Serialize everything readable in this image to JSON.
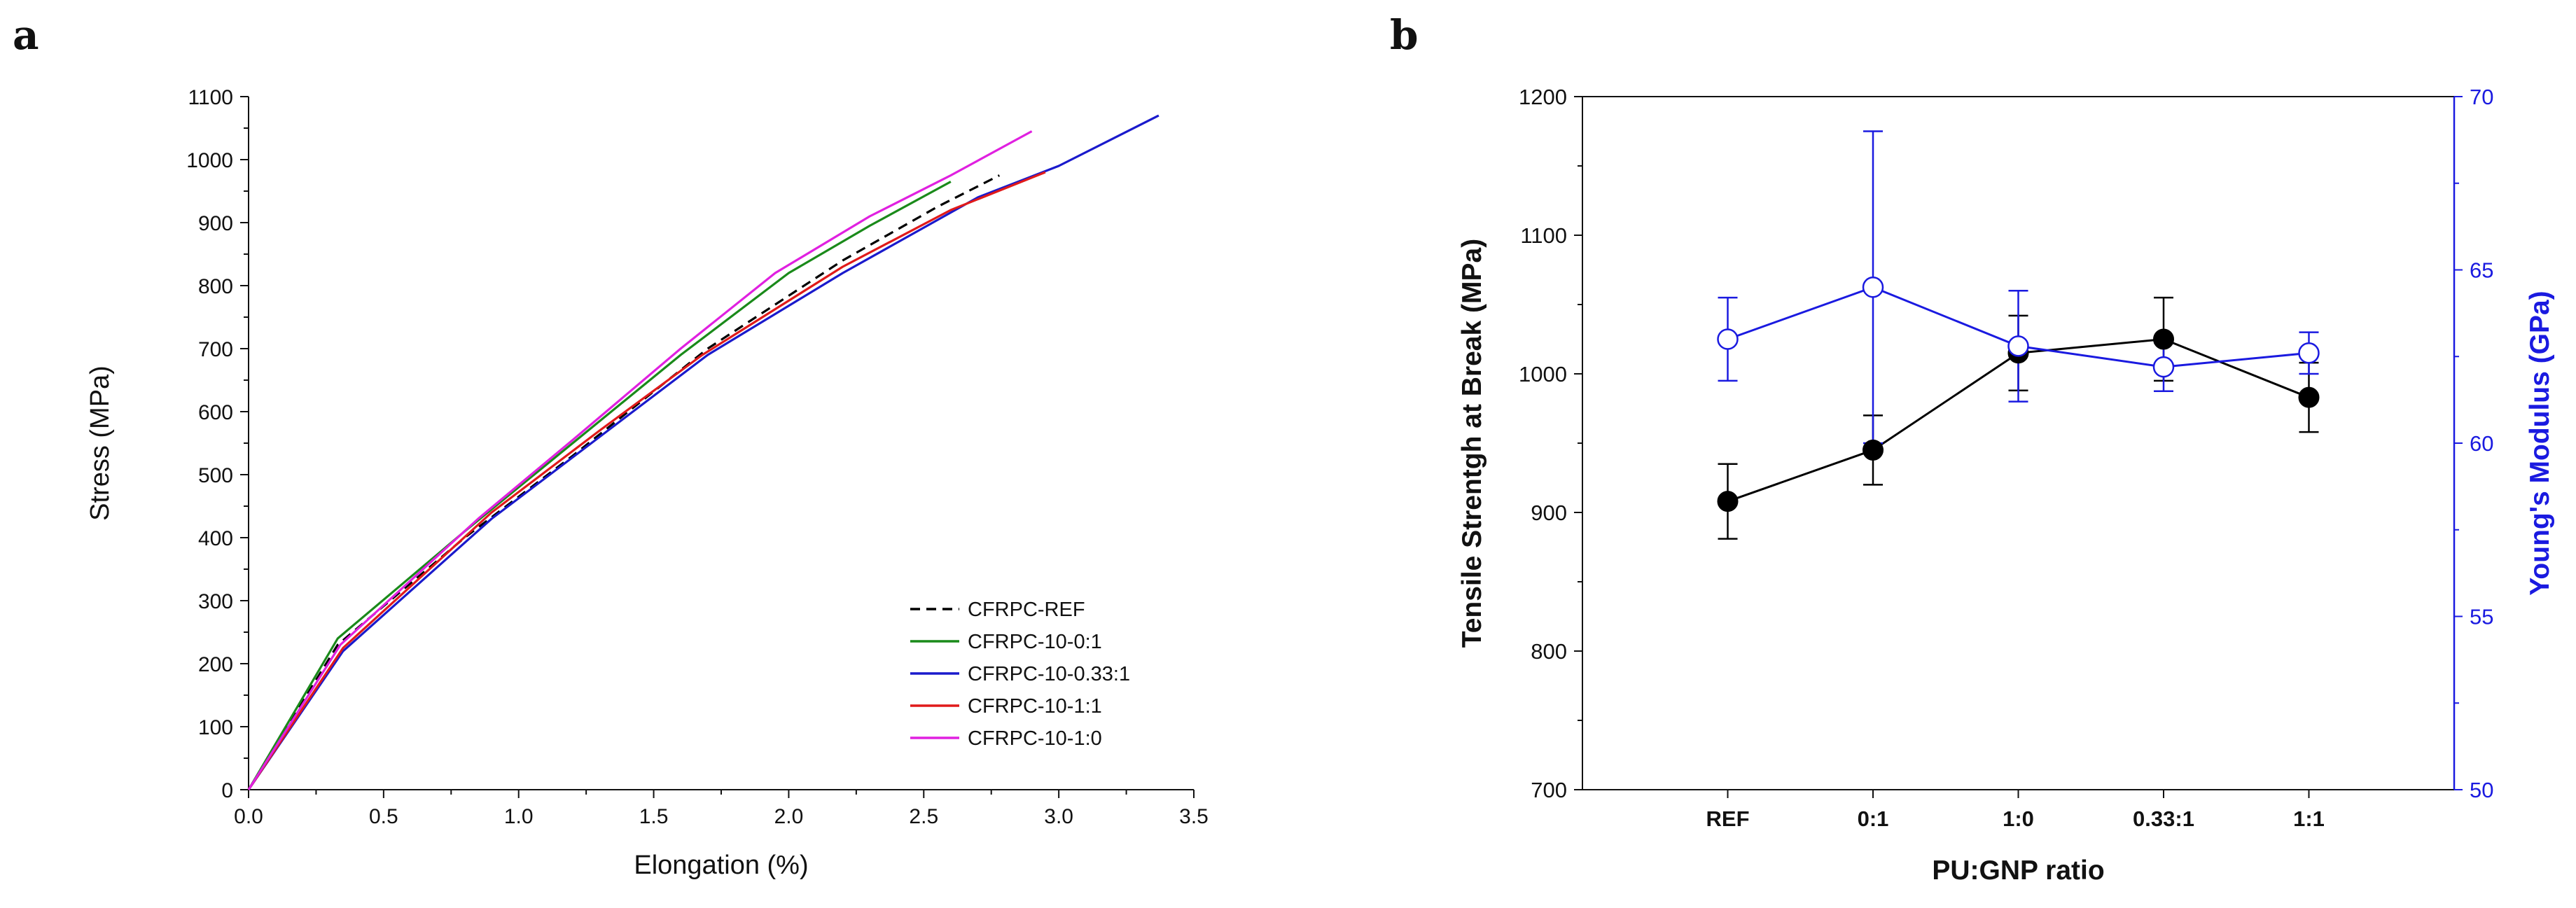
{
  "panel_labels": {
    "a": "a",
    "b": "b"
  },
  "chart_data": [
    {
      "type": "line",
      "panel": "a",
      "title": "",
      "xlabel": "Elongation (%)",
      "ylabel": "Stress (MPa)",
      "xlim": [
        0,
        3.5
      ],
      "ylim": [
        0,
        1100
      ],
      "x_ticks": [
        "0.0",
        "0.5",
        "1.0",
        "1.5",
        "2.0",
        "2.5",
        "3.0",
        "3.5"
      ],
      "y_ticks": [
        "0",
        "100",
        "200",
        "300",
        "400",
        "500",
        "600",
        "700",
        "800",
        "900",
        "1000",
        "1100"
      ],
      "legend_position": "bottom-right",
      "series": [
        {
          "name": "CFRPC-REF",
          "color": "#000000",
          "dash": true,
          "points": [
            [
              0,
              0
            ],
            [
              0.33,
              230
            ],
            [
              0.8,
              400
            ],
            [
              1.2,
              530
            ],
            [
              1.7,
              700
            ],
            [
              2.2,
              840
            ],
            [
              2.55,
              925
            ],
            [
              2.78,
              975
            ]
          ]
        },
        {
          "name": "CFRPC-10-0:1",
          "color": "#1a8a1a",
          "dash": false,
          "points": [
            [
              0,
              0
            ],
            [
              0.33,
              240
            ],
            [
              0.8,
              410
            ],
            [
              1.2,
              550
            ],
            [
              1.6,
              690
            ],
            [
              2.0,
              820
            ],
            [
              2.3,
              895
            ],
            [
              2.6,
              965
            ]
          ]
        },
        {
          "name": "CFRPC-10-0.33:1",
          "color": "#1a1acc",
          "dash": false,
          "points": [
            [
              0,
              0
            ],
            [
              0.35,
              220
            ],
            [
              0.9,
              430
            ],
            [
              1.3,
              560
            ],
            [
              1.7,
              690
            ],
            [
              2.2,
              820
            ],
            [
              2.7,
              940
            ],
            [
              3.0,
              990
            ],
            [
              3.37,
              1070
            ]
          ]
        },
        {
          "name": "CFRPC-10-1:1",
          "color": "#e01a1a",
          "dash": false,
          "points": [
            [
              0,
              0
            ],
            [
              0.35,
              225
            ],
            [
              0.9,
              440
            ],
            [
              1.3,
              570
            ],
            [
              1.68,
              690
            ],
            [
              2.2,
              830
            ],
            [
              2.6,
              920
            ],
            [
              2.95,
              980
            ]
          ]
        },
        {
          "name": "CFRPC-10-1:0",
          "color": "#e020e0",
          "dash": false,
          "points": [
            [
              0,
              0
            ],
            [
              0.34,
              230
            ],
            [
              0.85,
              430
            ],
            [
              1.2,
              555
            ],
            [
              1.6,
              700
            ],
            [
              1.95,
              820
            ],
            [
              2.3,
              910
            ],
            [
              2.6,
              975
            ],
            [
              2.9,
              1045
            ]
          ]
        }
      ]
    },
    {
      "type": "line",
      "panel": "b",
      "title": "",
      "xlabel": "PU:GNP ratio",
      "ylabel_left": "Tensile Strentgh at Break (MPa)",
      "ylabel_right": "Young's Modulus (GPa)",
      "categories": [
        "REF",
        "0:1",
        "1:0",
        "0.33:1",
        "1:1"
      ],
      "ylim_left": [
        700,
        1200
      ],
      "ylim_right": [
        50,
        70
      ],
      "y_ticks_left": [
        "700",
        "800",
        "900",
        "1000",
        "1100",
        "1200"
      ],
      "y_ticks_right": [
        "50",
        "55",
        "60",
        "65",
        "70"
      ],
      "left_color": "#000000",
      "right_color": "#1a1ae0",
      "series": [
        {
          "name": "Tensile Strength at Break",
          "axis": "left",
          "marker": "filled-circle",
          "values": [
            908,
            945,
            1015,
            1025,
            983
          ],
          "errors": [
            27,
            25,
            27,
            30,
            25
          ]
        },
        {
          "name": "Young's Modulus",
          "axis": "right",
          "marker": "open-circle",
          "values": [
            63.0,
            64.5,
            62.8,
            62.2,
            62.6
          ],
          "errors": [
            1.2,
            4.5,
            1.6,
            0.7,
            0.6
          ]
        }
      ]
    }
  ]
}
